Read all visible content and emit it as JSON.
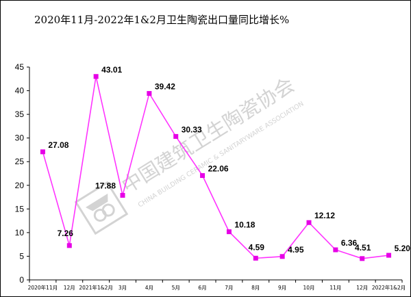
{
  "chart_data": {
    "type": "line",
    "title": "2020年11月-2022年1&2月卫生陶瓷出口量同比增长%",
    "categories": [
      "2020年11月",
      "12月",
      "2021年1&2月",
      "3月",
      "4月",
      "5月",
      "6月",
      "7月",
      "8月",
      "9月",
      "10月",
      "11月",
      "12月",
      "2022年1&2月"
    ],
    "series": [
      {
        "values": [
          27.08,
          7.26,
          43.01,
          17.88,
          39.42,
          30.33,
          22.06,
          10.18,
          4.59,
          4.95,
          12.12,
          6.36,
          4.51,
          5.2
        ]
      }
    ],
    "data_labels": [
      "27.08",
      "7.26",
      "43.01",
      "17.88",
      "39.42",
      "30.33",
      "22.06",
      "10.18",
      "4.59",
      "4.95",
      "12.12",
      "6.36",
      "4.51",
      "5.20"
    ],
    "ylim": [
      0,
      45
    ],
    "yticks": [
      "0",
      "5",
      "10",
      "15",
      "20",
      "25",
      "30",
      "35",
      "40",
      "45"
    ],
    "ytick_values": [
      0,
      5,
      10,
      15,
      20,
      25,
      30,
      35,
      40,
      45
    ],
    "grid": false,
    "legend": "none",
    "line_color": "#ff33ff",
    "marker_color": "#e600e6",
    "marker": "square"
  },
  "watermark": {
    "cn_text": "中国建筑卫生陶瓷协会",
    "en_text": "CHINA BUILDING CERAMIC & SANITARYWARE ASSOCIATION",
    "color": "#d3d3d3",
    "icon": "ceramic-association-logo-icon"
  }
}
